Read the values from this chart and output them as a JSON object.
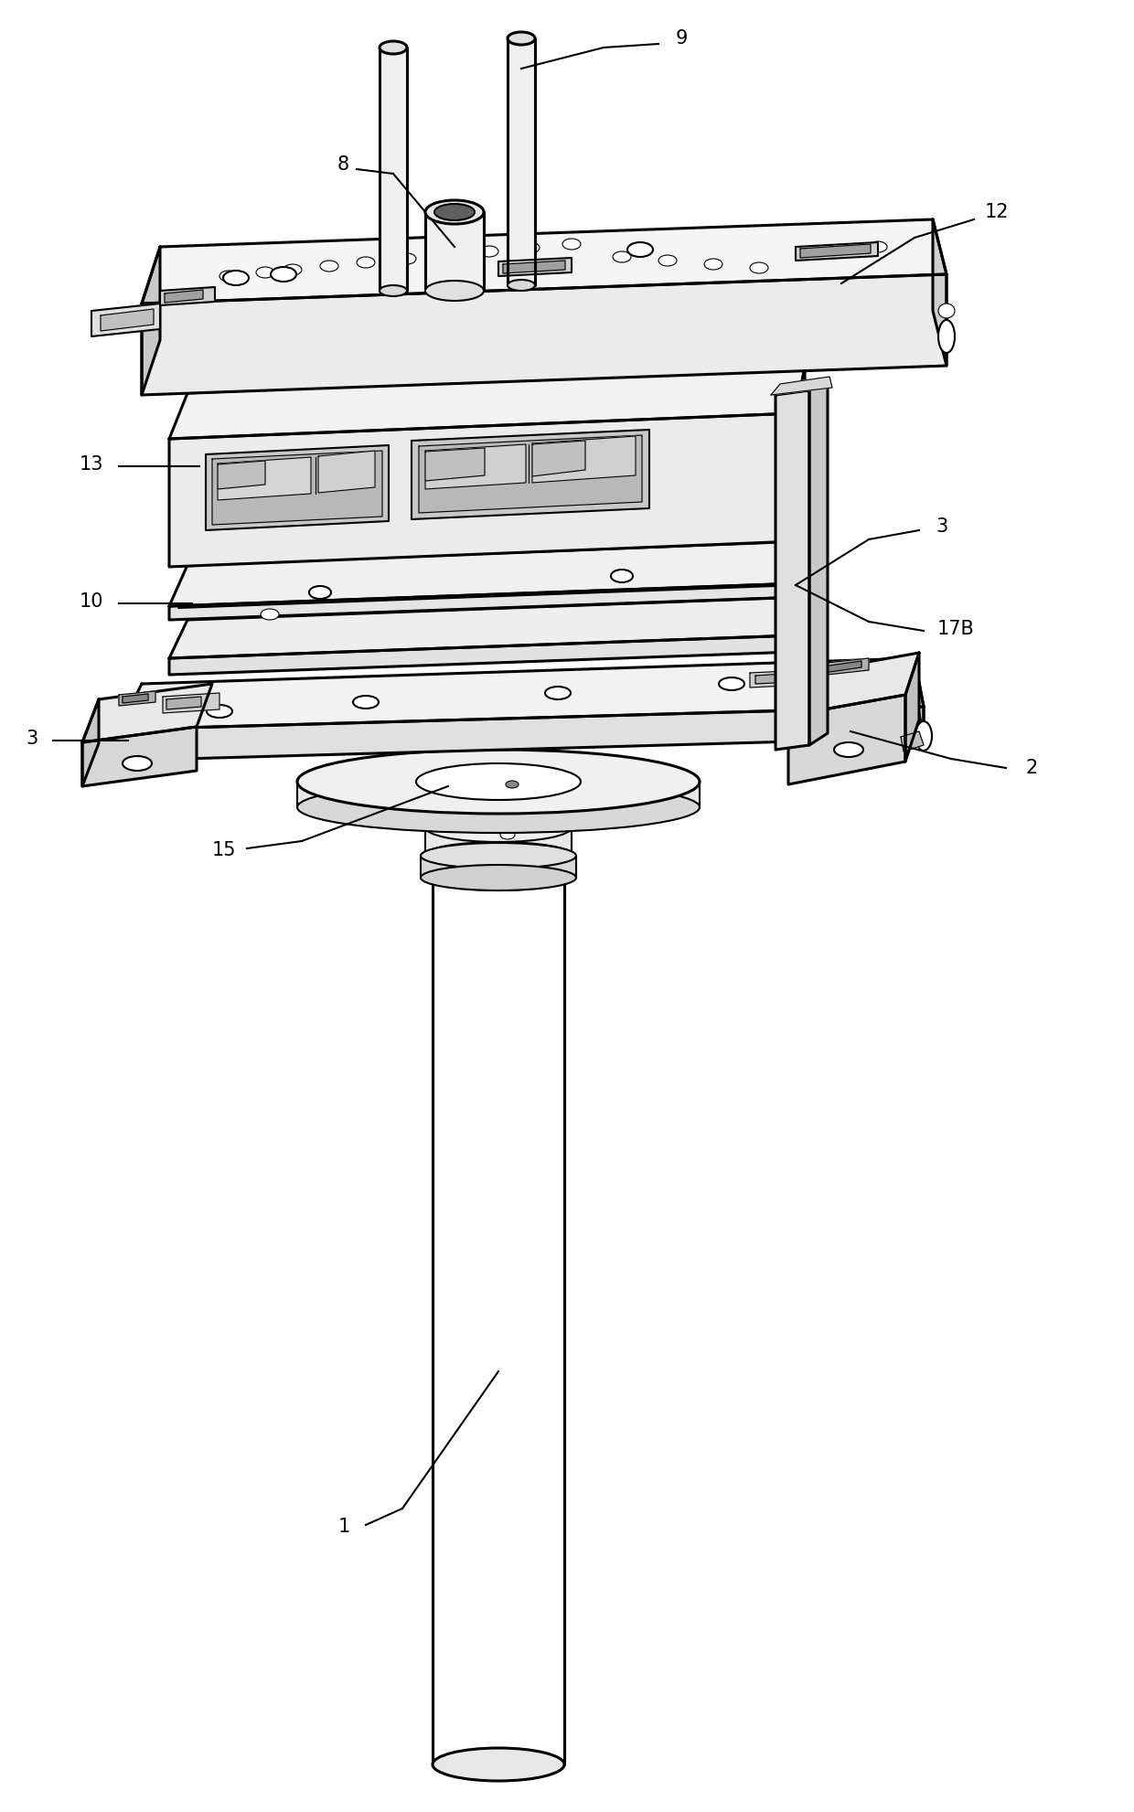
{
  "bg": "#ffffff",
  "lc": "#000000",
  "lw": 1.5,
  "lw_thick": 2.2,
  "lw_thin": 0.8,
  "figw": 12.4,
  "figh": 19.82,
  "dpi": 100
}
